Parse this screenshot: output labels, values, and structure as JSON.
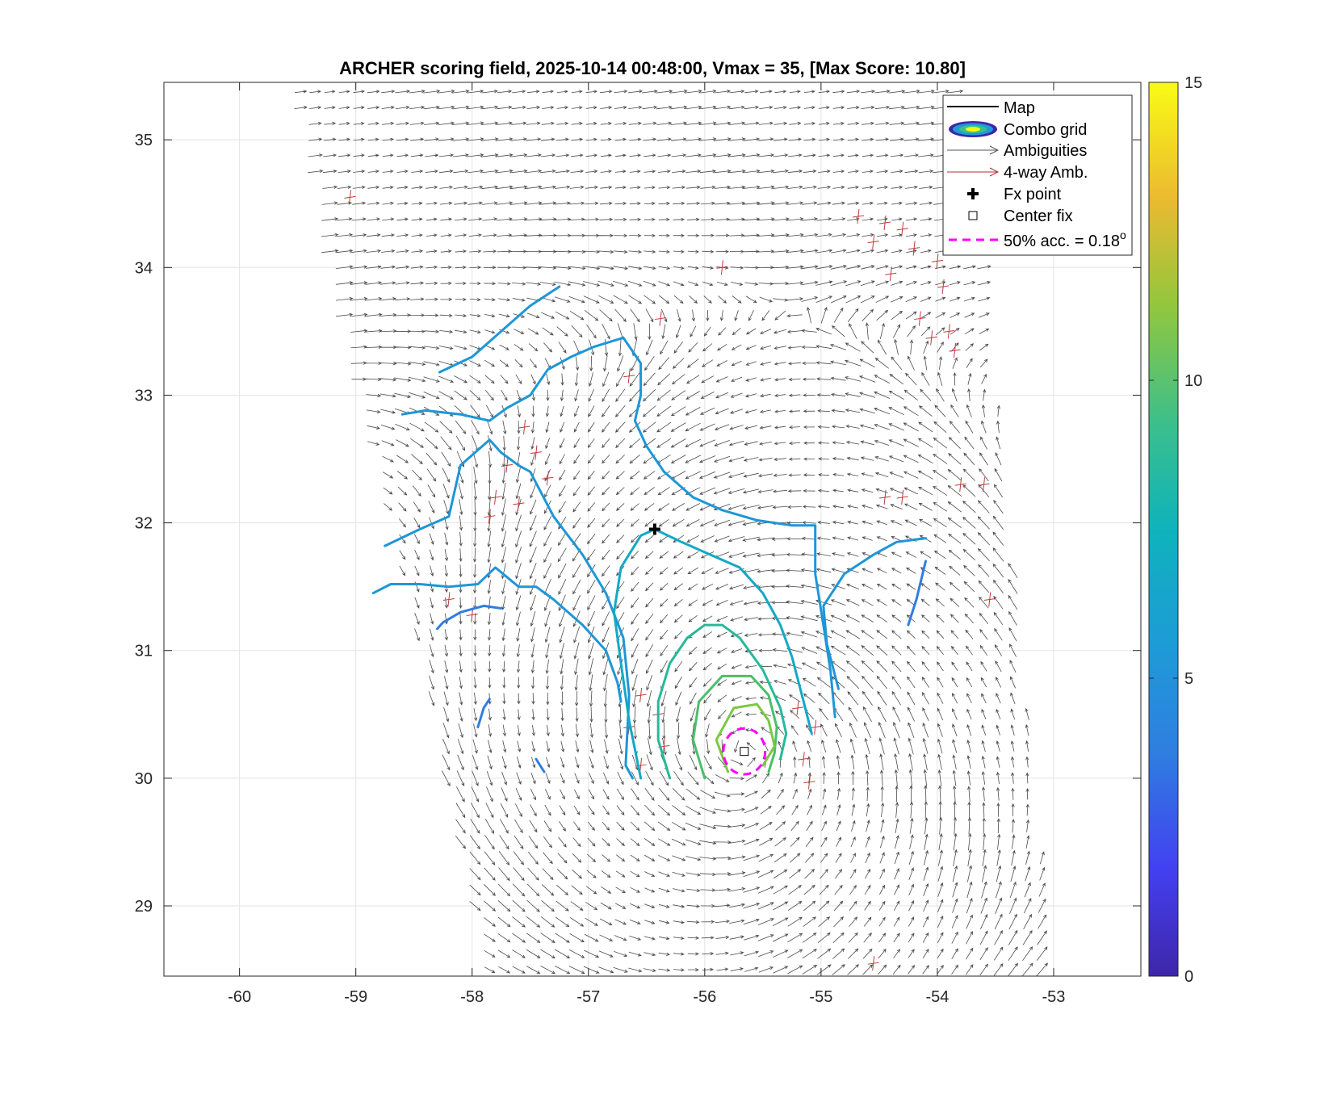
{
  "chart_data": {
    "type": "contour",
    "title": "ARCHER scoring field, 2025-10-14 00:48:00, Vmax = 35, [Max Score: 10.80]",
    "xlabel": "",
    "ylabel": "",
    "xlim": [
      -60.65,
      -52.25
    ],
    "ylim": [
      28.45,
      35.45
    ],
    "xticks": [
      "-60",
      "-59",
      "-58",
      "-57",
      "-56",
      "-55",
      "-54",
      "-53"
    ],
    "yticks": [
      "29",
      "30",
      "31",
      "32",
      "33",
      "34",
      "35"
    ],
    "grid": true,
    "colorbar": {
      "min": 0,
      "max": 15,
      "ticks": [
        "0",
        "5",
        "10",
        "15"
      ],
      "colormap": "parula"
    },
    "legend": {
      "placement": "top-right",
      "entries": [
        {
          "label": "Map",
          "symbol": "line",
          "color": "#000000"
        },
        {
          "label": "Combo grid",
          "symbol": "ellipse",
          "color": "#3a2bb8"
        },
        {
          "label": "Ambiguities",
          "symbol": "arrow",
          "color": "#555555"
        },
        {
          "label": "4-way Amb.",
          "symbol": "arrow",
          "color": "#b03030"
        },
        {
          "label": "Fx point",
          "symbol": "plus",
          "color": "#000000"
        },
        {
          "label": "Center fix",
          "symbol": "square",
          "color": "#000000"
        },
        {
          "label": "50% acc. = 0.18",
          "superscript": "o",
          "symbol": "dashed",
          "color": "#ff00ff"
        }
      ]
    },
    "fx_point": {
      "lon": -56.43,
      "lat": 31.95
    },
    "center_fix": {
      "lon": -55.66,
      "lat": 30.21
    },
    "accuracy_radius_deg": 0.18,
    "wind_field": {
      "center_lon": -55.66,
      "center_lat": 30.21,
      "rotation": "cyclonic"
    },
    "swath": [
      [
        -59.55,
        35.45
      ],
      [
        -53.75,
        35.45
      ],
      [
        -53.0,
        28.45
      ],
      [
        -57.85,
        28.45
      ]
    ],
    "contours": [
      {
        "level": 5.4,
        "color": "#2f7ee0",
        "lines": [
          [
            [
              -58.3,
              31.17
            ],
            [
              -58.25,
              31.22
            ],
            [
              -58.1,
              31.3
            ],
            [
              -57.9,
              31.35
            ],
            [
              -57.75,
              31.33
            ]
          ],
          [
            [
              -57.85,
              30.62
            ],
            [
              -57.9,
              30.55
            ],
            [
              -57.95,
              30.4
            ]
          ],
          [
            [
              -57.45,
              30.15
            ],
            [
              -57.38,
              30.05
            ]
          ],
          [
            [
              -54.25,
              31.2
            ],
            [
              -54.18,
              31.4
            ],
            [
              -54.1,
              31.7
            ]
          ]
        ]
      },
      {
        "level": 6.0,
        "color": "#1e96d8",
        "lines": [
          [
            [
              -58.28,
              33.18
            ],
            [
              -58.0,
              33.3
            ],
            [
              -57.75,
              33.5
            ],
            [
              -57.5,
              33.7
            ],
            [
              -57.25,
              33.85
            ]
          ],
          [
            [
              -58.75,
              31.82
            ],
            [
              -58.45,
              31.95
            ],
            [
              -58.2,
              32.05
            ],
            [
              -58.1,
              32.45
            ],
            [
              -57.85,
              32.65
            ],
            [
              -57.75,
              32.55
            ],
            [
              -57.6,
              32.45
            ],
            [
              -57.5,
              32.4
            ],
            [
              -57.3,
              32.05
            ],
            [
              -57.05,
              31.75
            ],
            [
              -56.85,
              31.45
            ],
            [
              -56.7,
              31.1
            ],
            [
              -56.65,
              30.65
            ],
            [
              -56.68,
              30.1
            ],
            [
              -56.62,
              30.0
            ]
          ],
          [
            [
              -58.85,
              31.45
            ],
            [
              -58.7,
              31.52
            ],
            [
              -58.45,
              31.52
            ],
            [
              -58.2,
              31.5
            ],
            [
              -57.95,
              31.52
            ],
            [
              -57.8,
              31.65
            ],
            [
              -57.6,
              31.5
            ],
            [
              -57.45,
              31.5
            ],
            [
              -57.3,
              31.4
            ],
            [
              -57.05,
              31.2
            ],
            [
              -56.85,
              31.0
            ],
            [
              -56.75,
              30.75
            ],
            [
              -56.72,
              30.6
            ]
          ],
          [
            [
              -58.6,
              32.85
            ],
            [
              -58.4,
              32.88
            ],
            [
              -58.1,
              32.85
            ],
            [
              -57.85,
              32.8
            ],
            [
              -57.7,
              32.9
            ],
            [
              -57.5,
              33.0
            ],
            [
              -57.35,
              33.2
            ],
            [
              -57.15,
              33.3
            ],
            [
              -56.95,
              33.38
            ],
            [
              -56.7,
              33.45
            ],
            [
              -56.55,
              33.25
            ],
            [
              -56.55,
              33.0
            ],
            [
              -56.6,
              32.8
            ],
            [
              -56.5,
              32.6
            ],
            [
              -56.35,
              32.4
            ],
            [
              -56.1,
              32.2
            ],
            [
              -55.85,
              32.1
            ],
            [
              -55.55,
              32.02
            ],
            [
              -55.25,
              31.98
            ],
            [
              -55.05,
              31.98
            ],
            [
              -55.05,
              31.6
            ],
            [
              -54.98,
              31.2
            ],
            [
              -54.92,
              30.85
            ],
            [
              -54.88,
              30.48
            ]
          ],
          [
            [
              -54.85,
              30.7
            ],
            [
              -54.95,
              31.05
            ],
            [
              -54.98,
              31.35
            ],
            [
              -54.8,
              31.6
            ],
            [
              -54.55,
              31.75
            ],
            [
              -54.35,
              31.85
            ],
            [
              -54.1,
              31.88
            ]
          ]
        ]
      },
      {
        "level": 7.5,
        "color": "#12a9c6",
        "lines": [
          [
            [
              -56.55,
              30.0
            ],
            [
              -56.65,
              30.45
            ],
            [
              -56.72,
              30.9
            ],
            [
              -56.78,
              31.3
            ],
            [
              -56.72,
              31.65
            ],
            [
              -56.55,
              31.9
            ],
            [
              -56.43,
              31.95
            ],
            [
              -56.2,
              31.85
            ],
            [
              -55.95,
              31.75
            ],
            [
              -55.7,
              31.65
            ],
            [
              -55.5,
              31.45
            ],
            [
              -55.35,
              31.2
            ],
            [
              -55.25,
              30.95
            ],
            [
              -55.15,
              30.6
            ],
            [
              -55.08,
              30.35
            ]
          ]
        ]
      },
      {
        "level": 8.5,
        "color": "#28b89a",
        "lines": [
          [
            [
              -56.3,
              30.0
            ],
            [
              -56.4,
              30.3
            ],
            [
              -56.4,
              30.6
            ],
            [
              -56.3,
              30.9
            ],
            [
              -56.15,
              31.1
            ],
            [
              -56.0,
              31.2
            ],
            [
              -55.85,
              31.2
            ],
            [
              -55.7,
              31.1
            ],
            [
              -55.5,
              30.85
            ],
            [
              -55.35,
              30.55
            ],
            [
              -55.3,
              30.35
            ],
            [
              -55.35,
              30.15
            ]
          ]
        ]
      },
      {
        "level": 9.5,
        "color": "#4cbe6a",
        "lines": [
          [
            [
              -56.0,
              30.0
            ],
            [
              -56.1,
              30.3
            ],
            [
              -56.05,
              30.6
            ],
            [
              -55.85,
              30.8
            ],
            [
              -55.6,
              30.8
            ],
            [
              -55.45,
              30.65
            ],
            [
              -55.38,
              30.4
            ],
            [
              -55.4,
              30.2
            ],
            [
              -55.45,
              30.05
            ]
          ]
        ]
      },
      {
        "level": 10.3,
        "color": "#7cc843",
        "lines": [
          [
            [
              -55.8,
              30.05
            ],
            [
              -55.9,
              30.3
            ],
            [
              -55.75,
              30.55
            ],
            [
              -55.55,
              30.58
            ],
            [
              -55.45,
              30.45
            ],
            [
              -55.4,
              30.25
            ],
            [
              -55.5,
              30.1
            ]
          ]
        ]
      }
    ],
    "four_way_ambiguity_points": [
      [
        -59.05,
        34.55
      ],
      [
        -54.68,
        34.4
      ],
      [
        -54.55,
        34.2
      ],
      [
        -54.45,
        34.35
      ],
      [
        -54.3,
        34.3
      ],
      [
        -54.2,
        34.15
      ],
      [
        -54.4,
        33.95
      ],
      [
        -54.0,
        34.05
      ],
      [
        -53.95,
        33.85
      ],
      [
        -54.15,
        33.6
      ],
      [
        -54.05,
        33.45
      ],
      [
        -53.9,
        33.5
      ],
      [
        -53.85,
        33.35
      ],
      [
        -55.85,
        34.0
      ],
      [
        -56.38,
        33.6
      ],
      [
        -57.55,
        32.75
      ],
      [
        -57.45,
        32.55
      ],
      [
        -57.7,
        32.45
      ],
      [
        -57.35,
        32.35
      ],
      [
        -57.8,
        32.2
      ],
      [
        -57.85,
        32.05
      ],
      [
        -57.6,
        32.15
      ],
      [
        -58.2,
        31.4
      ],
      [
        -58.0,
        31.28
      ],
      [
        -56.55,
        30.65
      ],
      [
        -56.4,
        30.5
      ],
      [
        -56.65,
        30.4
      ],
      [
        -56.35,
        30.25
      ],
      [
        -56.55,
        30.1
      ],
      [
        -55.2,
        30.55
      ],
      [
        -55.05,
        30.4
      ],
      [
        -55.15,
        30.15
      ],
      [
        -55.1,
        29.97
      ],
      [
        -54.45,
        32.2
      ],
      [
        -54.3,
        32.2
      ],
      [
        -53.8,
        32.3
      ],
      [
        -53.6,
        32.3
      ],
      [
        -53.55,
        31.4
      ],
      [
        -54.55,
        28.55
      ],
      [
        -56.65,
        33.15
      ]
    ]
  }
}
